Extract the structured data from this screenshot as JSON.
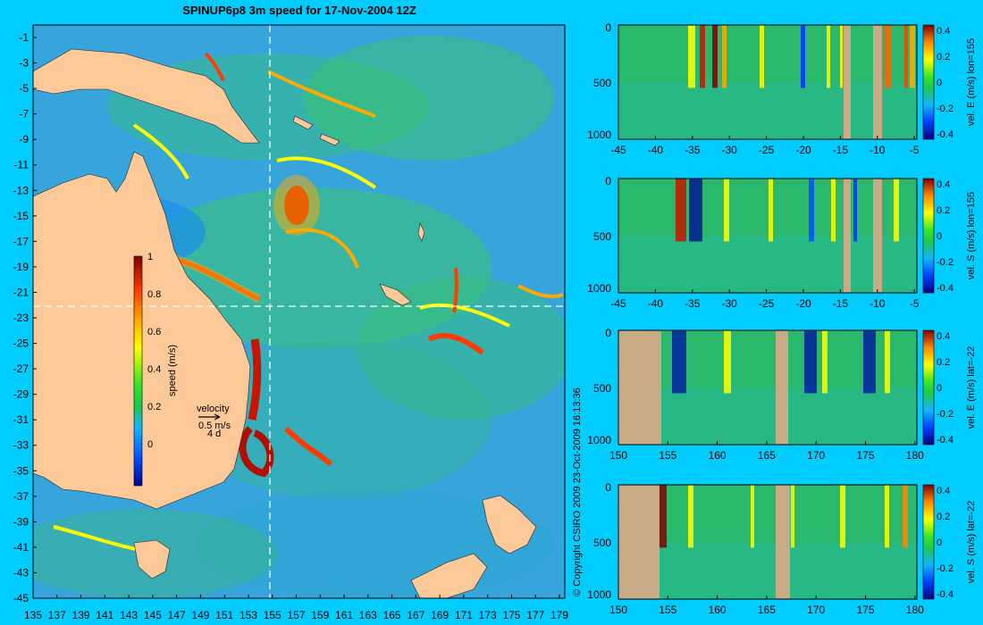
{
  "title": "SPINUP6p8 3m speed for 17-Nov-2004 12Z",
  "copyright": "© Copyright CSIRO 2009   23-Oct-2009 16:13:36",
  "map": {
    "lat_labels": [
      "-1",
      "-3",
      "-5",
      "-7",
      "-9",
      "-11",
      "-13",
      "-15",
      "-17",
      "-19",
      "-21",
      "-23",
      "-25",
      "-27",
      "-29",
      "-31",
      "-33",
      "-35",
      "-37",
      "-39",
      "-41",
      "-43",
      "-45"
    ],
    "lon_labels": [
      "135",
      "137",
      "139",
      "141",
      "143",
      "145",
      "147",
      "149",
      "151",
      "153",
      "155",
      "157",
      "159",
      "161",
      "163",
      "165",
      "167",
      "169",
      "171",
      "173",
      "175",
      "177",
      "179"
    ],
    "crosshair": {
      "lon": 155,
      "lat": -22
    },
    "colorbar": {
      "label": "speed (m/s)",
      "ticks": [
        "1",
        "0.8",
        "0.6",
        "0.4",
        "0.2",
        "0"
      ]
    },
    "velocity_legend": {
      "title": "velocity",
      "speed": "0.5 m/s",
      "days": "4 d"
    },
    "colors": {
      "ocean": "#2e9be0",
      "land": "#fec998",
      "background": "#00ccff"
    }
  },
  "panels": [
    {
      "label": "vel. E (m/s) lon=155",
      "x_ticks": [
        "-45",
        "-40",
        "-35",
        "-30",
        "-25",
        "-20",
        "-15",
        "-10",
        "-5"
      ],
      "y_ticks": [
        "0",
        "500",
        "1000"
      ],
      "cbar_ticks": [
        "0.4",
        "0.2",
        "0",
        "-0.2",
        "-0.4"
      ]
    },
    {
      "label": "vel. S (m/s) lon=155",
      "x_ticks": [
        "-45",
        "-40",
        "-35",
        "-30",
        "-25",
        "-20",
        "-15",
        "-10",
        "-5"
      ],
      "y_ticks": [
        "0",
        "500",
        "1000"
      ],
      "cbar_ticks": [
        "0.4",
        "0.2",
        "0",
        "-0.2",
        "-0.4"
      ]
    },
    {
      "label": "vel. E (m/s) lat=-22",
      "x_ticks": [
        "150",
        "155",
        "160",
        "165",
        "170",
        "175",
        "180"
      ],
      "y_ticks": [
        "0",
        "500",
        "1000"
      ],
      "cbar_ticks": [
        "0.4",
        "0.2",
        "0",
        "-0.2",
        "-0.4"
      ]
    },
    {
      "label": "vel. S (m/s) lat=-22",
      "x_ticks": [
        "150",
        "155",
        "160",
        "165",
        "170",
        "175",
        "180"
      ],
      "y_ticks": [
        "0",
        "500",
        "1000"
      ],
      "cbar_ticks": [
        "0.4",
        "0.2",
        "0",
        "-0.2",
        "-0.4"
      ]
    }
  ]
}
